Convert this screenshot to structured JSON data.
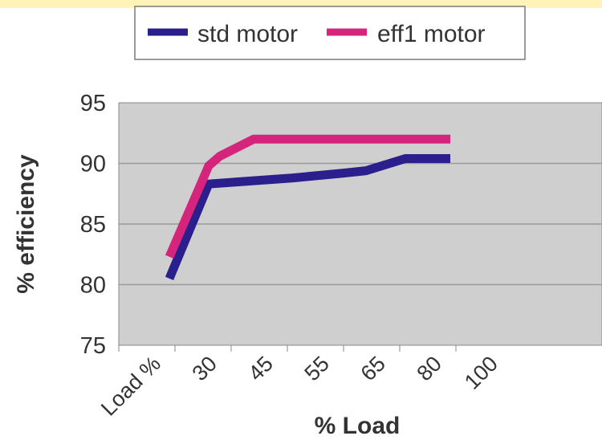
{
  "chart_data": {
    "type": "line",
    "title": "",
    "categories": [
      "Load %",
      "30",
      "45",
      "55",
      "65",
      "80",
      "100"
    ],
    "series": [
      {
        "name": "std motor",
        "color": "#2a1f8c",
        "x": [
          0.9,
          1.6,
          2.2,
          3.1,
          4.0,
          4.4,
          5.1,
          5.9
        ],
        "y": [
          80.5,
          88.3,
          88.5,
          88.8,
          89.2,
          89.4,
          90.4,
          90.4
        ]
      },
      {
        "name": "eff1 motor",
        "color": "#d4247c",
        "x": [
          0.9,
          1.6,
          1.8,
          2.4,
          3.4,
          4.6,
          5.9
        ],
        "y": [
          82.3,
          89.8,
          90.6,
          92.0,
          92.0,
          92.0,
          92.0
        ]
      }
    ],
    "xlabel": "% Load",
    "ylabel": "% efficiency",
    "ylim": [
      75,
      95
    ],
    "yticks": [
      "95",
      "90",
      "85",
      "80",
      "75"
    ],
    "grid": true,
    "legend_position": "top"
  }
}
